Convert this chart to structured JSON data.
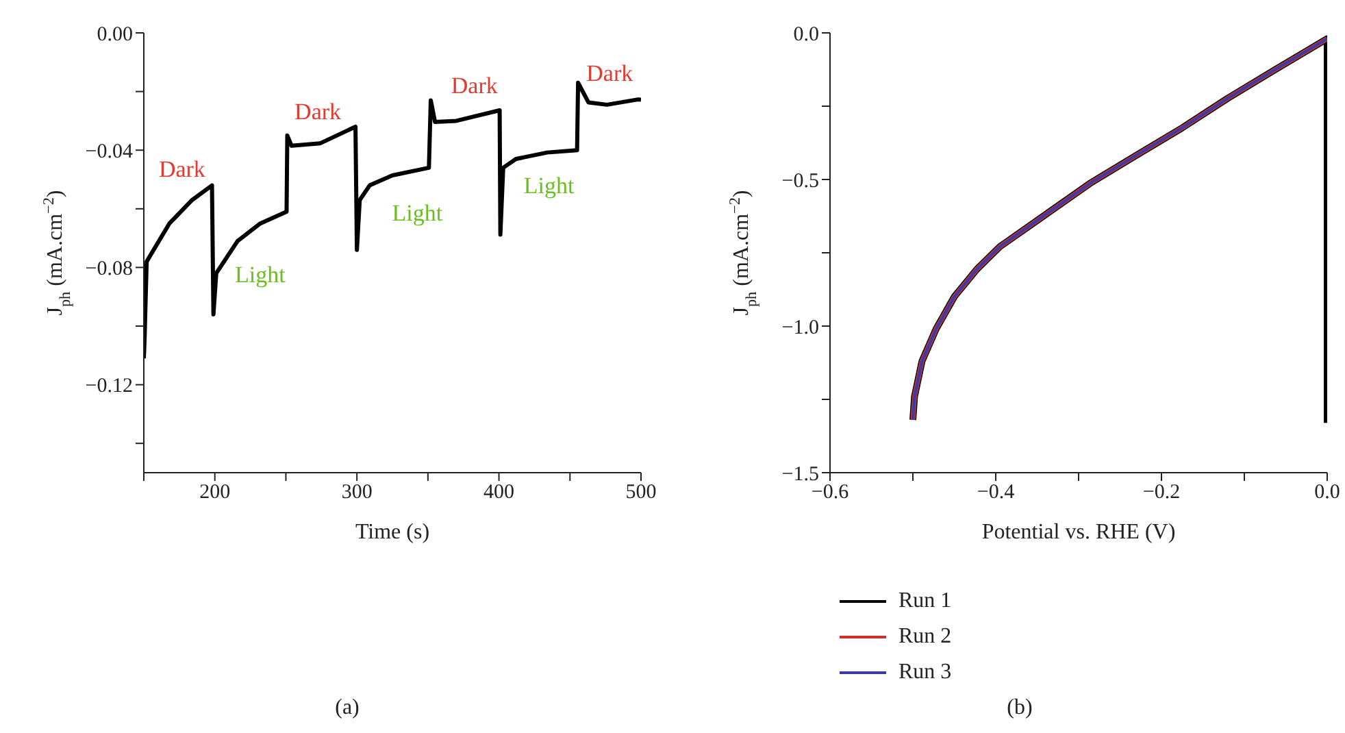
{
  "chart_data": [
    {
      "type": "line",
      "xlabel": "Time (s)",
      "ylabel": "J$_{ph}$ (mA.cm$^{−2}$)",
      "xlim": [
        150,
        500
      ],
      "ylim": [
        -0.15,
        0
      ],
      "xticks": [
        {
          "value": 150,
          "label": null
        },
        200,
        {
          "value": 250,
          "label": null
        },
        300,
        {
          "value": 350,
          "label": null
        },
        400,
        {
          "value": 450,
          "label": null
        },
        500
      ],
      "yticks": [
        {
          "value": 0,
          "label": "0.00"
        },
        {
          "value": -0.02,
          "label": null
        },
        {
          "value": -0.04,
          "label": "−0.04"
        },
        {
          "value": -0.06,
          "label": null
        },
        {
          "value": -0.08,
          "label": "−0.08"
        },
        {
          "value": -0.1,
          "label": null
        },
        {
          "value": -0.12,
          "label": "−0.12"
        },
        {
          "value": -0.14,
          "label": null
        }
      ],
      "series": [
        {
          "color": "#000000",
          "x": [
            150,
            150.5,
            152,
            168,
            184,
            198,
            199,
            201,
            216,
            232,
            250.5,
            251,
            254,
            274,
            299,
            300,
            302,
            309,
            325,
            350.7,
            352,
            355,
            370,
            400.5,
            401,
            403,
            412,
            434,
            455,
            455.7,
            463,
            476,
            498,
            500
          ],
          "values": [
            -0.111,
            -0.105,
            -0.078,
            -0.065,
            -0.057,
            -0.052,
            -0.096,
            -0.082,
            -0.071,
            -0.065,
            -0.061,
            -0.035,
            -0.0385,
            -0.0377,
            -0.032,
            -0.074,
            -0.057,
            -0.052,
            -0.0486,
            -0.046,
            -0.023,
            -0.0304,
            -0.03,
            -0.0264,
            -0.0688,
            -0.046,
            -0.043,
            -0.0408,
            -0.04,
            -0.017,
            -0.0237,
            -0.0245,
            -0.0227,
            -0.0228
          ]
        }
      ],
      "annotations": [
        "Dark",
        "Light",
        "Dark",
        "Light",
        "Dark",
        "Light",
        "Dark",
        "(a)"
      ]
    },
    {
      "type": "line",
      "xlabel": "Potential vs. RHE (V)",
      "ylabel": "J$_{ph}$ (mA.cm$^{−2}$)",
      "xlim": [
        -0.6,
        0
      ],
      "ylim": [
        -1.5,
        0
      ],
      "xticks": [
        {
          "value": -0.6,
          "label": "−0.6"
        },
        {
          "value": -0.5,
          "label": null
        },
        {
          "value": -0.4,
          "label": "−0.4"
        },
        {
          "value": -0.3,
          "label": null
        },
        {
          "value": -0.2,
          "label": "−0.2"
        },
        {
          "value": -0.1,
          "label": null
        },
        {
          "value": 0,
          "label": "0.0"
        }
      ],
      "yticks": [
        {
          "value": 0,
          "label": "0.0"
        },
        {
          "value": -0.25,
          "label": null
        },
        {
          "value": -0.5,
          "label": "−0.5"
        },
        {
          "value": -0.75,
          "label": null
        },
        {
          "value": -1,
          "label": "−1.0"
        },
        {
          "value": -1.25,
          "label": null
        },
        {
          "value": -1.5,
          "label": "−1.5"
        }
      ],
      "legend": "bottom",
      "series": [
        {
          "name": "Run 1",
          "color": "#000000",
          "x": [
            -0.5,
            -0.498,
            -0.489,
            -0.472,
            -0.45,
            -0.423,
            -0.395,
            -0.34,
            -0.285,
            -0.23,
            -0.175,
            -0.12,
            -0.065,
            0,
            0
          ],
          "values": [
            -1.32,
            -1.24,
            -1.12,
            -1.01,
            -0.9,
            -0.807,
            -0.729,
            -0.62,
            -0.511,
            -0.417,
            -0.324,
            -0.223,
            -0.129,
            -0.02,
            -1.33
          ]
        },
        {
          "name": "Run 2",
          "color": "#d0302a",
          "x": [
            -0.5,
            -0.498,
            -0.489,
            -0.472,
            -0.45,
            -0.423,
            -0.395,
            -0.34,
            -0.285,
            -0.23,
            -0.175,
            -0.12,
            -0.065,
            0
          ],
          "values": [
            -1.32,
            -1.24,
            -1.12,
            -1.01,
            -0.9,
            -0.807,
            -0.729,
            -0.62,
            -0.511,
            -0.417,
            -0.324,
            -0.223,
            -0.129,
            -0.02
          ]
        },
        {
          "name": "Run 3",
          "color": "#3a3aa8",
          "x": [
            -0.5,
            -0.498,
            -0.489,
            -0.472,
            -0.45,
            -0.423,
            -0.395,
            -0.34,
            -0.285,
            -0.23,
            -0.175,
            -0.12,
            -0.065,
            0
          ],
          "values": [
            -1.32,
            -1.24,
            -1.12,
            -1.01,
            -0.9,
            -0.807,
            -0.729,
            -0.62,
            -0.511,
            -0.417,
            -0.324,
            -0.223,
            -0.129,
            -0.02
          ]
        }
      ],
      "annotations": [
        "(b)"
      ]
    }
  ]
}
